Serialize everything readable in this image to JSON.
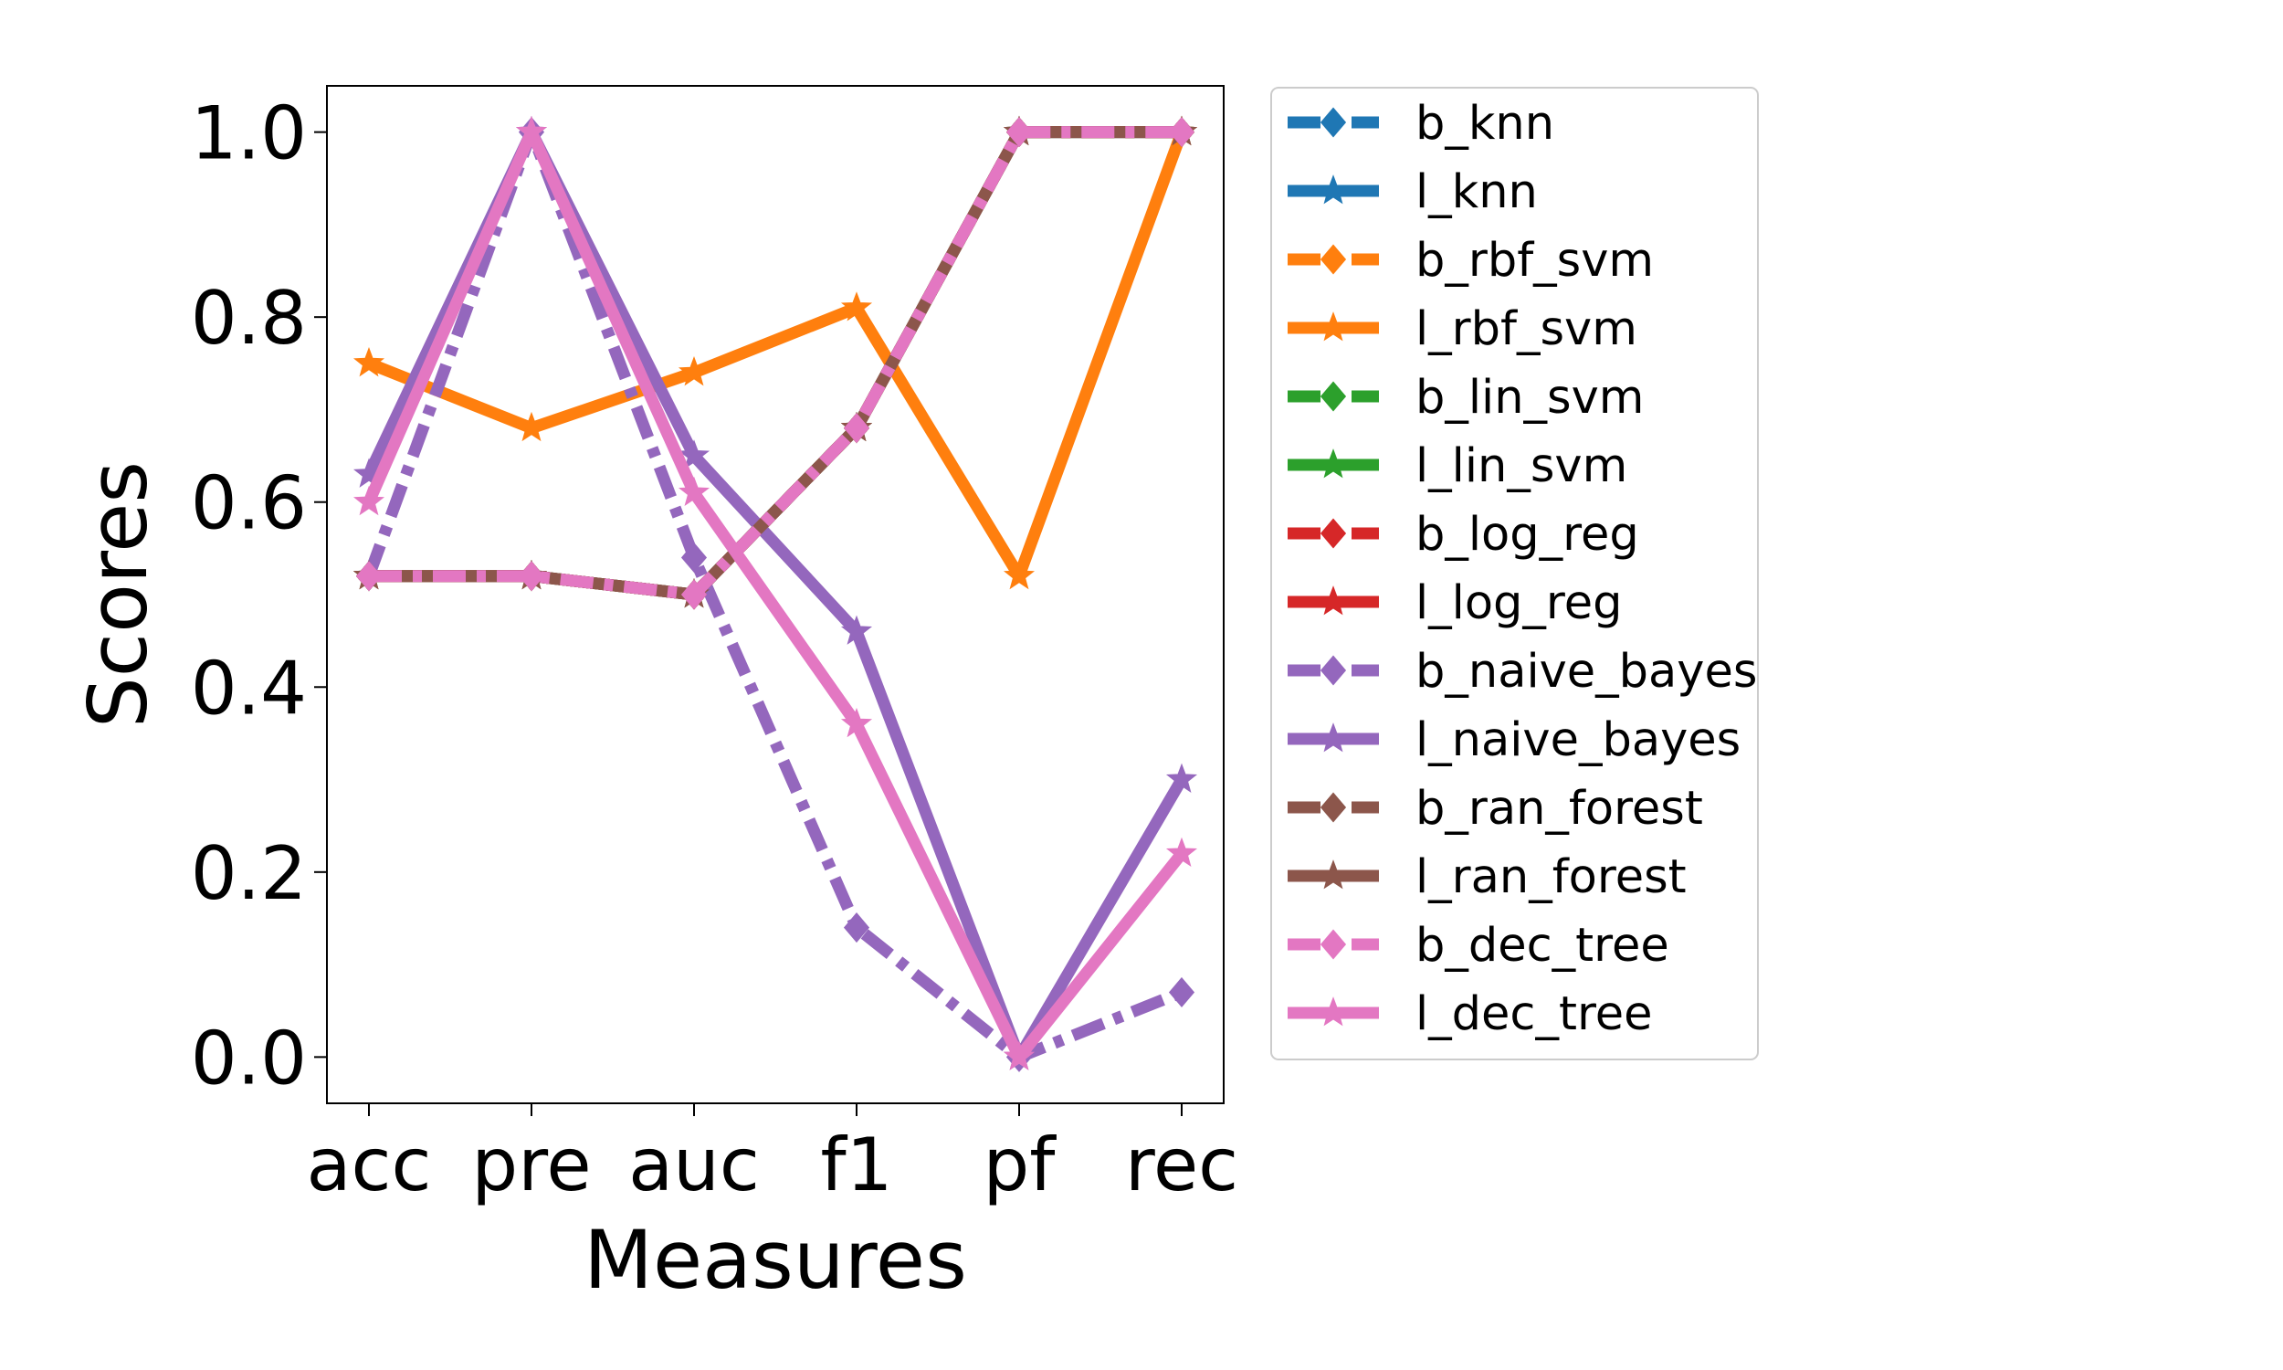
{
  "chart_data": {
    "type": "line",
    "categories": [
      "acc",
      "pre",
      "auc",
      "f1",
      "pf",
      "rec"
    ],
    "xlabel": "Measures",
    "ylabel": "Scores",
    "ylim": [
      -0.05,
      1.05
    ],
    "yticks": [
      "0.0",
      "0.2",
      "0.4",
      "0.6",
      "0.8",
      "1.0"
    ],
    "grid": false,
    "legend_position": "outside-right",
    "series": [
      {
        "name": "b_knn",
        "color": "#1f77b4",
        "style": "dashdot",
        "marker": "diamond",
        "values": [
          0.52,
          0.52,
          0.5,
          0.68,
          1.0,
          1.0
        ]
      },
      {
        "name": "l_knn",
        "color": "#1f77b4",
        "style": "solid",
        "marker": "star",
        "values": [
          0.52,
          0.52,
          0.5,
          0.68,
          1.0,
          1.0
        ]
      },
      {
        "name": "b_rbf_svm",
        "color": "#ff7f0e",
        "style": "dashdot",
        "marker": "diamond",
        "values": [
          0.52,
          0.52,
          0.5,
          0.68,
          1.0,
          1.0
        ]
      },
      {
        "name": "l_rbf_svm",
        "color": "#ff7f0e",
        "style": "solid",
        "marker": "star",
        "values": [
          0.75,
          0.68,
          0.74,
          0.81,
          0.52,
          1.0
        ]
      },
      {
        "name": "b_lin_svm",
        "color": "#2ca02c",
        "style": "dashdot",
        "marker": "diamond",
        "values": [
          0.52,
          0.52,
          0.5,
          0.68,
          1.0,
          1.0
        ]
      },
      {
        "name": "l_lin_svm",
        "color": "#2ca02c",
        "style": "solid",
        "marker": "star",
        "values": [
          0.52,
          0.52,
          0.5,
          0.68,
          1.0,
          1.0
        ]
      },
      {
        "name": "b_log_reg",
        "color": "#d62728",
        "style": "dashdot",
        "marker": "diamond",
        "values": [
          0.52,
          0.52,
          0.5,
          0.68,
          1.0,
          1.0
        ]
      },
      {
        "name": "l_log_reg",
        "color": "#d62728",
        "style": "solid",
        "marker": "star",
        "values": [
          0.52,
          0.52,
          0.5,
          0.68,
          1.0,
          1.0
        ]
      },
      {
        "name": "b_naive_bayes",
        "color": "#9467bd",
        "style": "dashdot",
        "marker": "diamond",
        "values": [
          0.52,
          1.0,
          0.54,
          0.14,
          0.0,
          0.07
        ]
      },
      {
        "name": "l_naive_bayes",
        "color": "#9467bd",
        "style": "solid",
        "marker": "star",
        "values": [
          0.63,
          1.0,
          0.65,
          0.46,
          0.0,
          0.3
        ]
      },
      {
        "name": "b_ran_forest",
        "color": "#8c564b",
        "style": "dashdot",
        "marker": "diamond",
        "values": [
          0.52,
          0.52,
          0.5,
          0.68,
          1.0,
          1.0
        ]
      },
      {
        "name": "l_ran_forest",
        "color": "#8c564b",
        "style": "solid",
        "marker": "star",
        "values": [
          0.52,
          0.52,
          0.5,
          0.68,
          1.0,
          1.0
        ]
      },
      {
        "name": "b_dec_tree",
        "color": "#e377c2",
        "style": "dashdot",
        "marker": "diamond",
        "values": [
          0.52,
          0.52,
          0.5,
          0.68,
          1.0,
          1.0
        ]
      },
      {
        "name": "l_dec_tree",
        "color": "#e377c2",
        "style": "solid",
        "marker": "star",
        "values": [
          0.6,
          1.0,
          0.61,
          0.36,
          0.0,
          0.22
        ]
      }
    ]
  }
}
